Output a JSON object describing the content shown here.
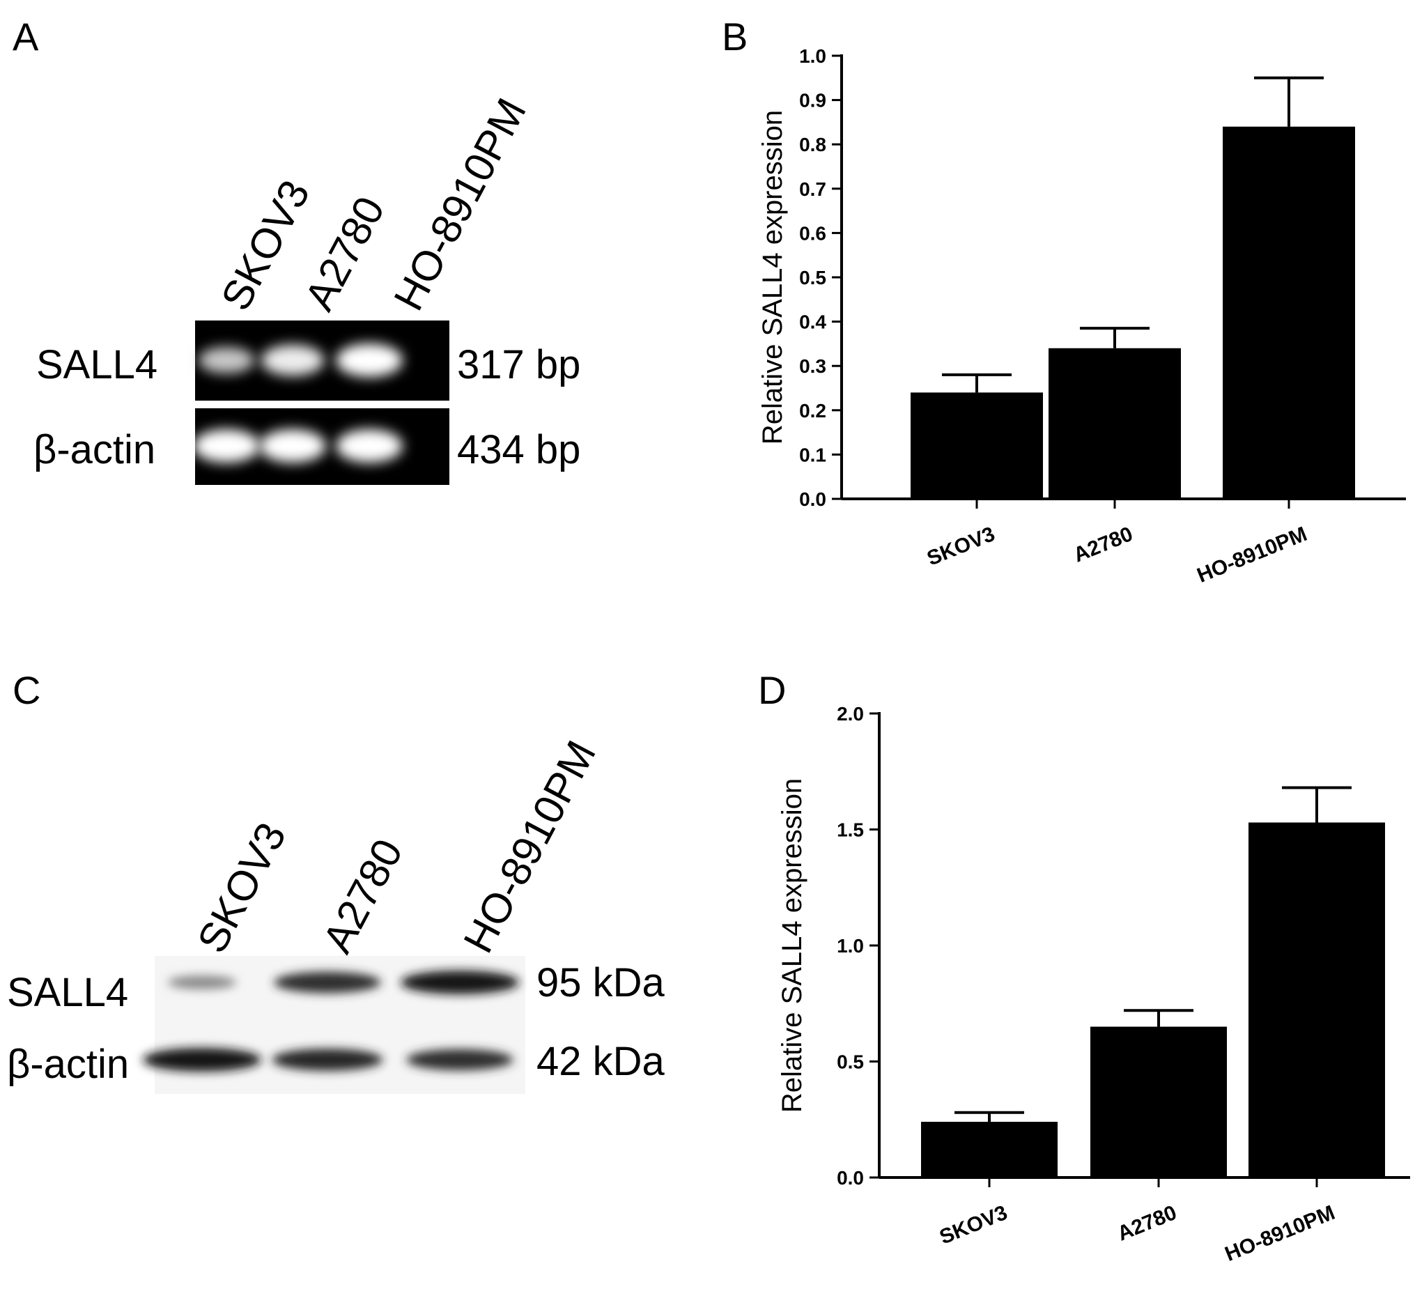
{
  "panels": {
    "A": {
      "label": "A",
      "lanes": [
        "SKOV3",
        "A2780",
        "HO-8910PM"
      ],
      "rows": [
        {
          "name": "SALL4",
          "size": "317 bp",
          "intensity": [
            0.55,
            0.85,
            1.0
          ]
        },
        {
          "name": "β-actin",
          "size": "434 bp",
          "intensity": [
            1.0,
            1.0,
            1.0
          ]
        }
      ]
    },
    "C": {
      "label": "C",
      "lanes": [
        "SKOV3",
        "A2780",
        "HO-8910PM"
      ],
      "rows": [
        {
          "name": "SALL4",
          "size": "95 kDa",
          "intensity": [
            0.35,
            0.85,
            1.0
          ]
        },
        {
          "name": "β-actin",
          "size": "42 kDa",
          "intensity": [
            1.0,
            0.9,
            0.85
          ]
        }
      ]
    }
  },
  "chart_data": [
    {
      "panel": "B",
      "type": "bar",
      "categories": [
        "SKOV3",
        "A2780",
        "HO-8910PM"
      ],
      "values": [
        0.24,
        0.34,
        0.84
      ],
      "errors": [
        0.04,
        0.045,
        0.11
      ],
      "ylabel": "Relative SALL4 expression",
      "ylim": [
        0,
        1.0
      ],
      "yticks": [
        "0.0",
        "0.1",
        "0.2",
        "0.3",
        "0.4",
        "0.5",
        "0.6",
        "0.7",
        "0.8",
        "0.9",
        "1.0"
      ],
      "bar_color": "#000000"
    },
    {
      "panel": "D",
      "type": "bar",
      "categories": [
        "SKOV3",
        "A2780",
        "HO-8910PM"
      ],
      "values": [
        0.24,
        0.65,
        1.53
      ],
      "errors": [
        0.04,
        0.07,
        0.15
      ],
      "ylabel": "Relative SALL4 expression",
      "ylim": [
        0,
        2.0
      ],
      "yticks": [
        "0.0",
        "0.5",
        "1.0",
        "1.5",
        "2.0"
      ],
      "bar_color": "#000000"
    }
  ]
}
